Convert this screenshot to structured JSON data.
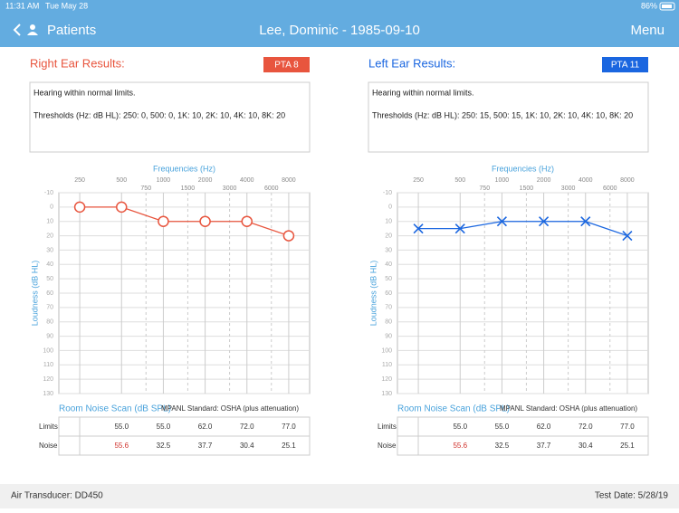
{
  "status_bar": {
    "time": "11:31 AM",
    "date": "Tue May 28",
    "battery": "86%"
  },
  "nav": {
    "back": "Patients",
    "title": "Lee, Dominic - 1985-09-10",
    "menu": "Menu"
  },
  "panels": [
    {
      "title": "Right Ear Results:",
      "pta": "PTA 8",
      "color": "#e8553e",
      "summary": "Hearing within normal limits.",
      "thresholds": "Thresholds (Hz: dB HL): 250: 0, 500: 0, 1K: 10, 2K: 10, 4K: 10, 8K: 20",
      "chart": {
        "type": "line",
        "marker": "circle",
        "color": "#e8553e",
        "x_label": "Frequencies (Hz)",
        "y_label": "Loudness (dB HL)",
        "x": [
          250,
          500,
          1000,
          2000,
          4000,
          8000
        ],
        "values": [
          0,
          0,
          10,
          10,
          10,
          20
        ],
        "xticks": [
          250,
          500,
          1000,
          2000,
          4000,
          8000
        ],
        "xticks_minor": [
          750,
          1500,
          3000,
          6000
        ],
        "ylim": [
          -10,
          130
        ],
        "yticks": [
          -10,
          0,
          10,
          20,
          30,
          40,
          50,
          60,
          70,
          80,
          90,
          100,
          110,
          120,
          130
        ]
      },
      "noise": {
        "title": "Room Noise Scan (dB SPL)",
        "standard": "MPANL Standard: OSHA (plus attenuation)",
        "rows": [
          {
            "label": "Limits",
            "values": [
              "55.0",
              "55.0",
              "62.0",
              "72.0",
              "77.0"
            ]
          },
          {
            "label": "Noise",
            "values": [
              "55.6",
              "32.5",
              "37.7",
              "30.4",
              "25.1"
            ]
          }
        ]
      }
    },
    {
      "title": "Left Ear Results:",
      "pta": "PTA 11",
      "color": "#1a66e0",
      "summary": "Hearing within normal limits.",
      "thresholds": "Thresholds (Hz: dB HL): 250: 15, 500: 15, 1K: 10, 2K: 10, 4K: 10, 8K: 20",
      "chart": {
        "type": "line",
        "marker": "cross",
        "color": "#1a66e0",
        "x_label": "Frequencies (Hz)",
        "y_label": "Loudness (dB HL)",
        "x": [
          250,
          500,
          1000,
          2000,
          4000,
          8000
        ],
        "values": [
          15,
          15,
          10,
          10,
          10,
          20
        ],
        "xticks": [
          250,
          500,
          1000,
          2000,
          4000,
          8000
        ],
        "xticks_minor": [
          750,
          1500,
          3000,
          6000
        ],
        "ylim": [
          -10,
          130
        ],
        "yticks": [
          -10,
          0,
          10,
          20,
          30,
          40,
          50,
          60,
          70,
          80,
          90,
          100,
          110,
          120,
          130
        ]
      },
      "noise": {
        "title": "Room Noise Scan (dB SPL)",
        "standard": "MPANL Standard: OSHA (plus attenuation)",
        "rows": [
          {
            "label": "Limits",
            "values": [
              "55.0",
              "55.0",
              "62.0",
              "72.0",
              "77.0"
            ]
          },
          {
            "label": "Noise",
            "values": [
              "55.6",
              "32.5",
              "37.7",
              "30.4",
              "25.1"
            ]
          }
        ]
      }
    }
  ],
  "footer": {
    "transducer": "Air Transducer: DD450",
    "date": "Test Date: 5/28/19"
  }
}
